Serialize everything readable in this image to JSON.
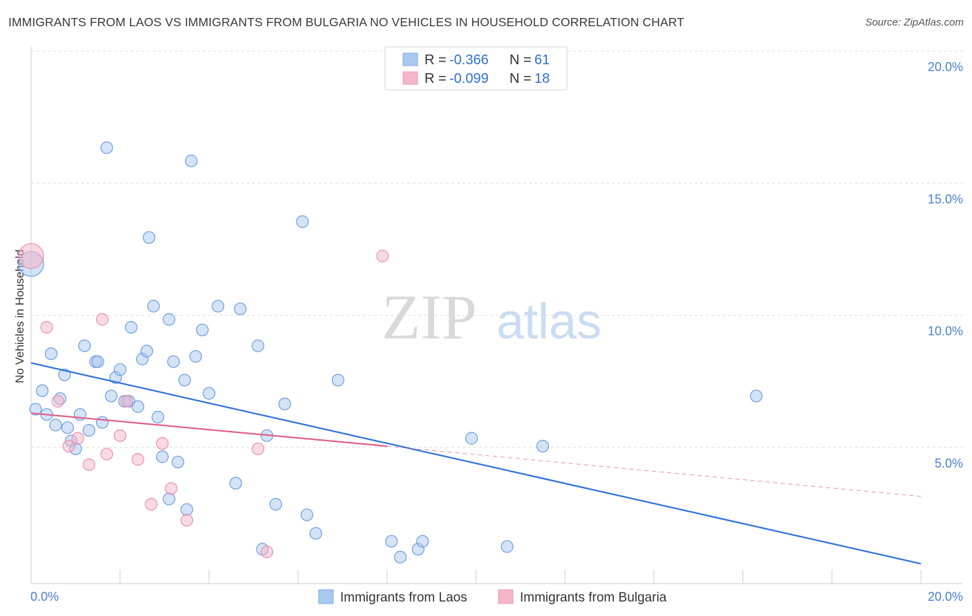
{
  "title": "IMMIGRANTS FROM LAOS VS IMMIGRANTS FROM BULGARIA NO VEHICLES IN HOUSEHOLD CORRELATION CHART",
  "source": "Source: ZipAtlas.com",
  "watermark": {
    "zip": "ZIP",
    "atlas": "atlas"
  },
  "legend": {
    "r_label": "R =",
    "n_label": "N =",
    "rows": [
      {
        "r": "-0.366",
        "n": "61",
        "color": "#a9c8ef"
      },
      {
        "r": "-0.099",
        "n": "18",
        "color": "#f4b6c8"
      }
    ]
  },
  "bottom_legend": [
    {
      "label": "Immigrants from Laos",
      "color": "#a9c8ef"
    },
    {
      "label": "Immigrants from Bulgaria",
      "color": "#f4b6c8"
    }
  ],
  "chart_data": {
    "type": "scatter",
    "title": "IMMIGRANTS FROM LAOS VS IMMIGRANTS FROM BULGARIA NO VEHICLES IN HOUSEHOLD CORRELATION CHART",
    "xlabel": "",
    "ylabel": "No Vehicles in Household",
    "xlim": [
      0,
      20
    ],
    "ylim": [
      0,
      20
    ],
    "x_tick_labels": [
      "0.0%",
      "20.0%"
    ],
    "y_tick_labels": [
      "5.0%",
      "10.0%",
      "15.0%",
      "20.0%"
    ],
    "y_ticks": [
      5,
      10,
      15,
      20
    ],
    "grid": true,
    "colors": {
      "laos": "#2f72d8",
      "bulgaria": "#e0608c",
      "laos_fill": "#a9c8ef",
      "bulgaria_fill": "#f4b6c8"
    },
    "series": [
      {
        "name": "Immigrants from Laos",
        "points": [
          [
            0.0,
            12.1
          ],
          [
            0.1,
            6.6
          ],
          [
            0.25,
            7.3
          ],
          [
            0.35,
            6.4
          ],
          [
            0.45,
            8.7
          ],
          [
            0.55,
            6.0
          ],
          [
            0.65,
            7.0
          ],
          [
            0.75,
            7.9
          ],
          [
            0.82,
            5.9
          ],
          [
            0.9,
            5.4
          ],
          [
            1.0,
            5.1
          ],
          [
            1.1,
            6.4
          ],
          [
            1.2,
            9.0
          ],
          [
            1.3,
            5.8
          ],
          [
            1.45,
            8.4
          ],
          [
            1.5,
            8.4
          ],
          [
            1.6,
            6.1
          ],
          [
            1.7,
            16.5
          ],
          [
            1.8,
            7.1
          ],
          [
            1.9,
            7.8
          ],
          [
            2.0,
            8.1
          ],
          [
            2.1,
            6.9
          ],
          [
            2.2,
            6.9
          ],
          [
            2.25,
            9.7
          ],
          [
            2.4,
            6.7
          ],
          [
            2.5,
            8.5
          ],
          [
            2.6,
            8.8
          ],
          [
            2.65,
            13.1
          ],
          [
            2.75,
            10.5
          ],
          [
            2.85,
            6.3
          ],
          [
            2.95,
            4.8
          ],
          [
            3.1,
            10.0
          ],
          [
            3.1,
            3.2
          ],
          [
            3.2,
            8.4
          ],
          [
            3.3,
            4.6
          ],
          [
            3.45,
            7.7
          ],
          [
            3.5,
            2.8
          ],
          [
            3.6,
            16.0
          ],
          [
            3.7,
            8.6
          ],
          [
            3.85,
            9.6
          ],
          [
            4.0,
            7.2
          ],
          [
            4.2,
            10.5
          ],
          [
            4.6,
            3.8
          ],
          [
            4.7,
            10.4
          ],
          [
            5.1,
            9.0
          ],
          [
            5.2,
            1.3
          ],
          [
            5.3,
            5.6
          ],
          [
            5.5,
            3.0
          ],
          [
            5.7,
            6.8
          ],
          [
            6.1,
            13.7
          ],
          [
            6.2,
            2.6
          ],
          [
            6.4,
            1.9
          ],
          [
            6.9,
            7.7
          ],
          [
            8.1,
            1.6
          ],
          [
            8.3,
            1.0
          ],
          [
            8.7,
            1.3
          ],
          [
            8.8,
            1.6
          ],
          [
            9.9,
            5.5
          ],
          [
            10.7,
            1.4
          ],
          [
            11.5,
            5.2
          ],
          [
            16.3,
            7.1
          ]
        ]
      },
      {
        "name": "Immigrants from Bulgaria",
        "points": [
          [
            0.0,
            12.4
          ],
          [
            0.35,
            9.7
          ],
          [
            0.6,
            6.9
          ],
          [
            0.85,
            5.2
          ],
          [
            1.05,
            5.5
          ],
          [
            1.3,
            4.5
          ],
          [
            1.6,
            10.0
          ],
          [
            1.7,
            4.9
          ],
          [
            2.0,
            5.6
          ],
          [
            2.15,
            6.9
          ],
          [
            2.4,
            4.7
          ],
          [
            2.7,
            3.0
          ],
          [
            2.95,
            5.3
          ],
          [
            3.15,
            3.6
          ],
          [
            3.5,
            2.4
          ],
          [
            5.1,
            5.1
          ],
          [
            5.3,
            1.2
          ],
          [
            7.9,
            12.4
          ]
        ]
      }
    ],
    "trend_lines": [
      {
        "series": "Immigrants from Laos",
        "x": [
          0,
          20
        ],
        "y": [
          8.35,
          0.75
        ],
        "style": "solid"
      },
      {
        "series": "Immigrants from Bulgaria",
        "x": [
          0,
          8.0
        ],
        "y": [
          6.45,
          5.2
        ],
        "style": "solid"
      },
      {
        "series": "Immigrants from Bulgaria",
        "x": [
          8.0,
          20
        ],
        "y": [
          5.2,
          3.3
        ],
        "style": "dashed"
      }
    ]
  }
}
